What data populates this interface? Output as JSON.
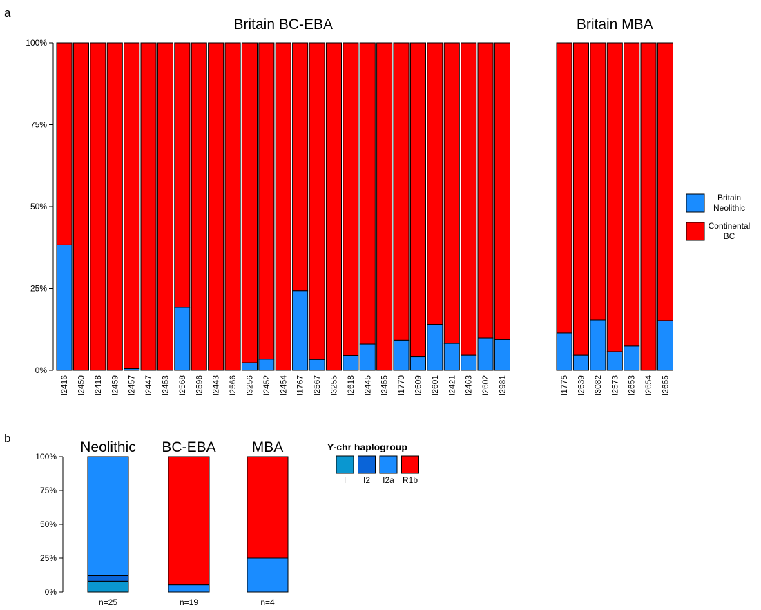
{
  "figure": {
    "panel_a_letter": "a",
    "panel_b_letter": "b"
  },
  "chart_data": [
    {
      "type": "bar",
      "stacked": true,
      "panel": "a",
      "y_ticks": [
        "0%",
        "25%",
        "50%",
        "75%",
        "100%"
      ],
      "ylim": [
        0,
        100
      ],
      "colors": {
        "Britain Neolithic": "#1a8cff",
        "Continental BC": "#ff0000"
      },
      "legend": {
        "placement": "right",
        "entries": [
          {
            "name": "Britain Neolithic",
            "lines": [
              "Britain",
              "Neolithic"
            ],
            "color": "#1a8cff"
          },
          {
            "name": "Continental BC",
            "lines": [
              "Continental",
              "BC"
            ],
            "color": "#ff0000"
          }
        ]
      },
      "groups": [
        {
          "title": "Britain BC-EBA",
          "samples": [
            "I2416",
            "I2450",
            "I2418",
            "I2459",
            "I2457",
            "I2447",
            "I2453",
            "I2568",
            "I2596",
            "I2443",
            "I2566",
            "I3256",
            "I2452",
            "I2454",
            "I1767",
            "I2567",
            "I3255",
            "I2618",
            "I2445",
            "I2455",
            "I1770",
            "I2609",
            "I2601",
            "I2421",
            "I2463",
            "I2602",
            "I2981"
          ],
          "britain_neolithic": [
            38.3,
            0,
            0,
            0,
            0.5,
            0,
            0,
            19.2,
            0,
            0,
            0,
            2.3,
            3.4,
            0,
            24.3,
            3.3,
            0,
            4.5,
            8.0,
            0,
            9.2,
            4.1,
            14.0,
            8.2,
            4.6,
            9.9,
            9.4
          ]
        },
        {
          "title": "Britain MBA",
          "samples": [
            "I1775",
            "I2639",
            "I3082",
            "I2573",
            "I2653",
            "I2654",
            "I2655"
          ],
          "britain_neolithic": [
            11.4,
            4.6,
            15.4,
            5.7,
            7.4,
            0,
            15.2
          ]
        }
      ]
    },
    {
      "type": "bar",
      "stacked": true,
      "panel": "b",
      "y_ticks": [
        "0%",
        "25%",
        "50%",
        "75%",
        "100%"
      ],
      "ylim": [
        0,
        100
      ],
      "legend": {
        "title": "Y-chr haplogroup",
        "placement": "top-right",
        "entries": [
          {
            "name": "I",
            "color": "#0a97d0"
          },
          {
            "name": "I2",
            "color": "#0a64d8"
          },
          {
            "name": "I2a",
            "color": "#1a8cff"
          },
          {
            "name": "R1b",
            "color": "#ff0000"
          }
        ]
      },
      "categories": [
        "Neolithic",
        "BC-EBA",
        "MBA"
      ],
      "n_labels": [
        "n=25",
        "n=19",
        "n=4"
      ],
      "series": [
        {
          "name": "I",
          "values": [
            8,
            0,
            0
          ]
        },
        {
          "name": "I2",
          "values": [
            4,
            0,
            0
          ]
        },
        {
          "name": "I2a",
          "values": [
            88,
            5.3,
            25
          ]
        },
        {
          "name": "R1b",
          "values": [
            0,
            94.7,
            75
          ]
        }
      ]
    }
  ]
}
